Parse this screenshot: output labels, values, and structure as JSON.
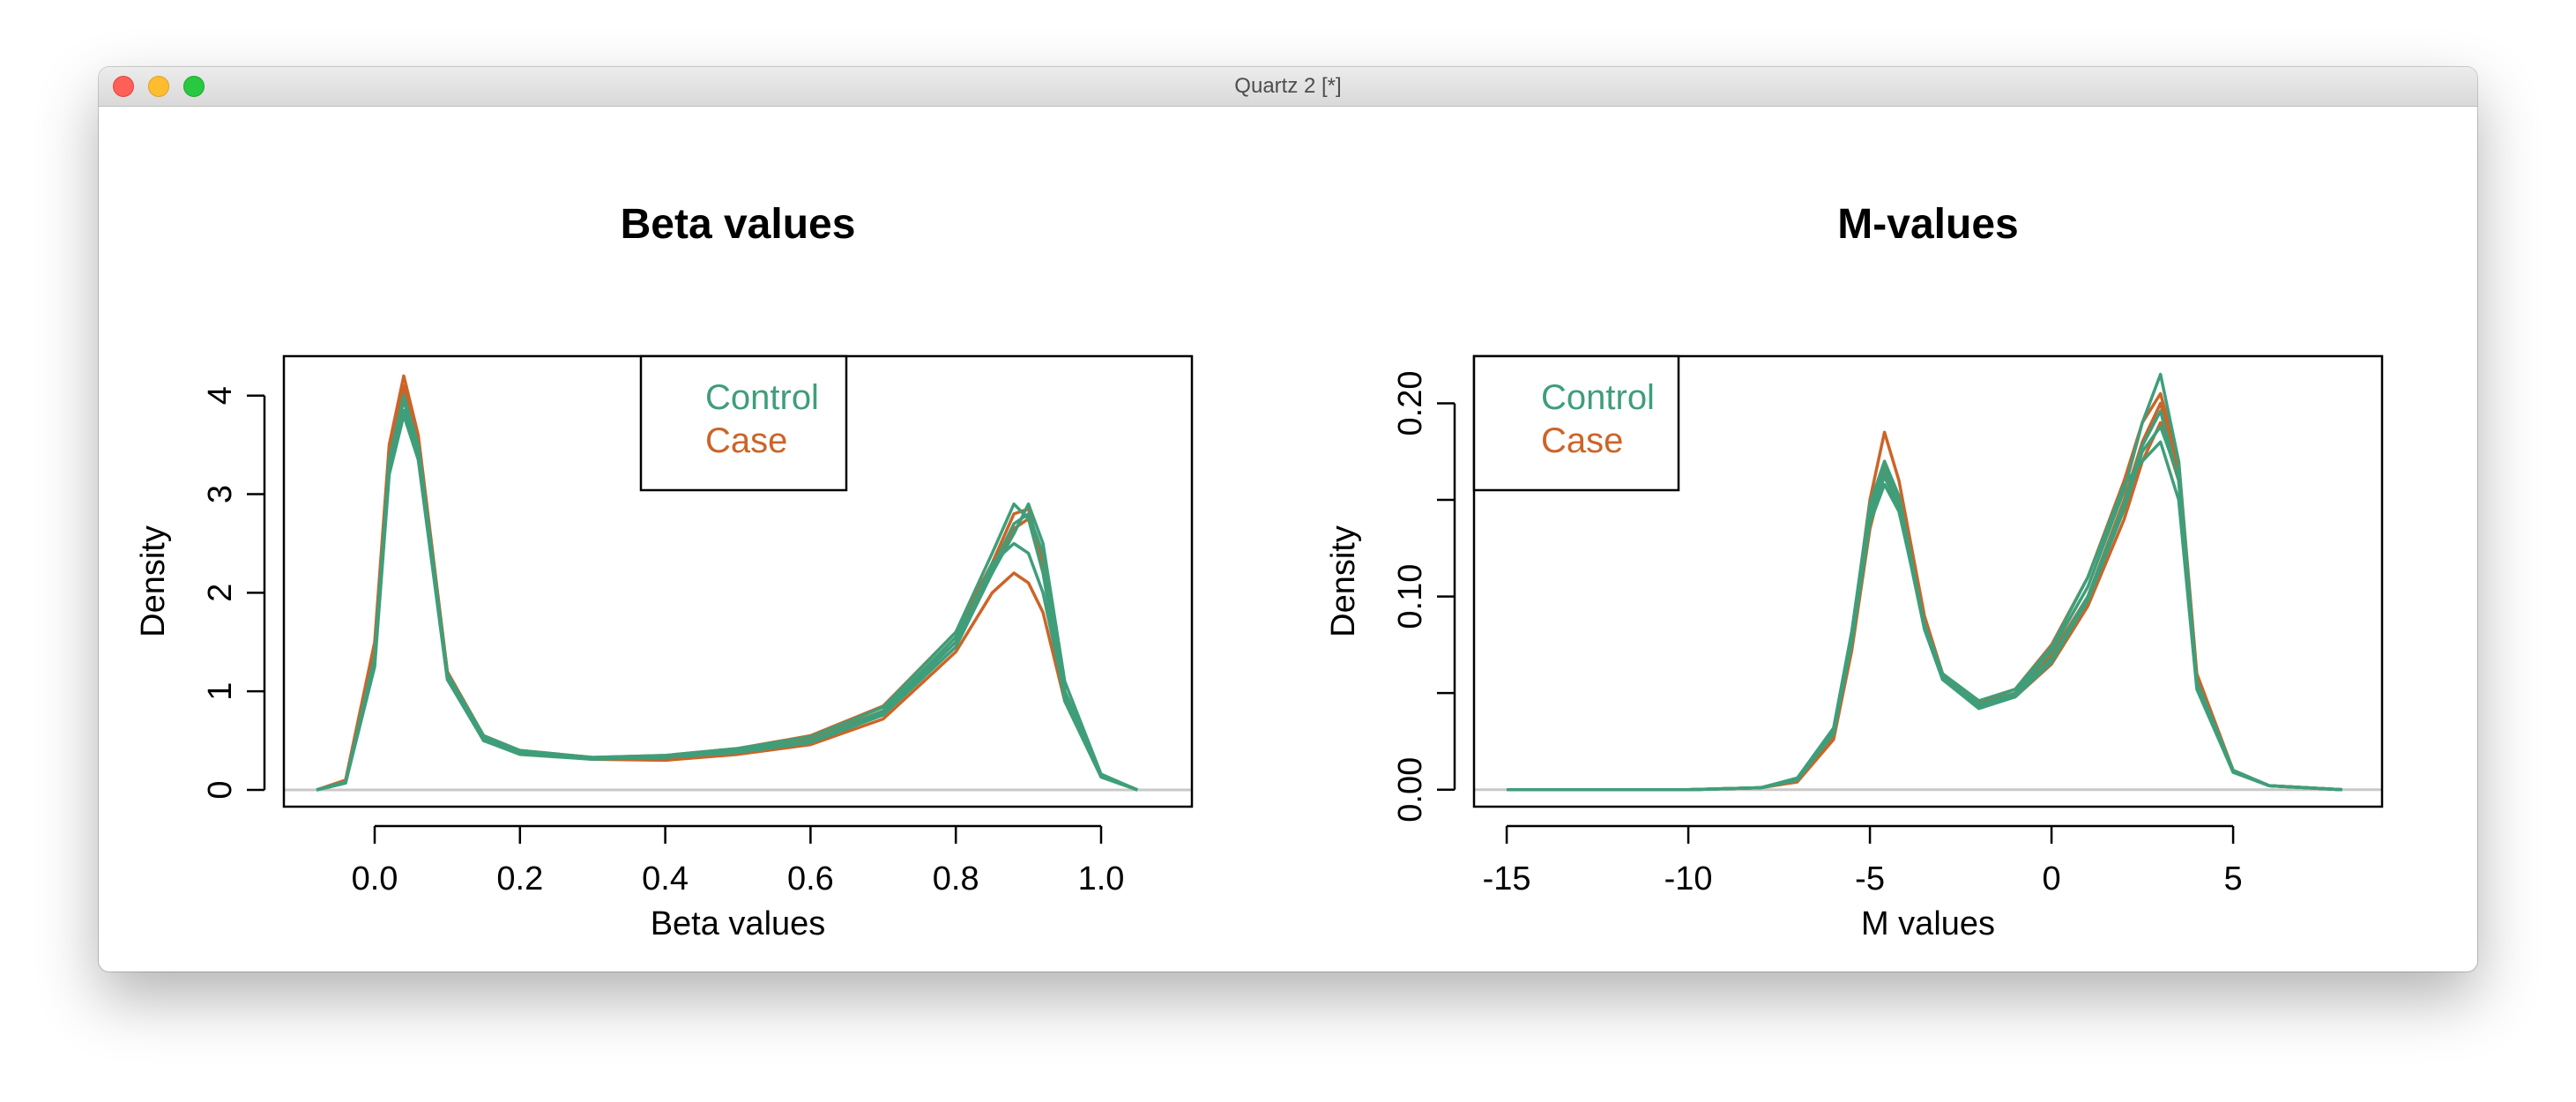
{
  "window": {
    "title": "Quartz 2 [*]"
  },
  "colors": {
    "control": "#3f9e7a",
    "case": "#cc6428",
    "baseline": "#c8c8c8",
    "axis": "#000000"
  },
  "chart_data": [
    {
      "type": "line",
      "title": "Beta values",
      "xlabel": "Beta values",
      "ylabel": "Density",
      "xlim": [
        -0.125,
        1.125
      ],
      "ylim": [
        -0.17,
        4.4
      ],
      "xticks": [
        0.0,
        0.2,
        0.4,
        0.6,
        0.8,
        1.0
      ],
      "xtick_labels": [
        "0.0",
        "0.2",
        "0.4",
        "0.6",
        "0.8",
        "1.0"
      ],
      "yticks": [
        0,
        1,
        2,
        3,
        4
      ],
      "ytick_labels": [
        "0",
        "1",
        "2",
        "3",
        "4"
      ],
      "legend": {
        "placement": "top-center",
        "entries": [
          "Control",
          "Case"
        ]
      },
      "grid": false,
      "series": [
        {
          "group": "Case",
          "x": [
            -0.08,
            -0.04,
            0.0,
            0.02,
            0.04,
            0.06,
            0.1,
            0.15,
            0.2,
            0.3,
            0.4,
            0.5,
            0.6,
            0.7,
            0.8,
            0.85,
            0.88,
            0.9,
            0.92,
            0.95,
            1.0,
            1.05
          ],
          "y": [
            0,
            0.1,
            1.5,
            3.5,
            4.2,
            3.6,
            1.2,
            0.55,
            0.4,
            0.33,
            0.35,
            0.42,
            0.55,
            0.85,
            1.6,
            2.3,
            2.8,
            2.85,
            2.3,
            1.0,
            0.15,
            0
          ]
        },
        {
          "group": "Case",
          "x": [
            -0.08,
            -0.04,
            0.0,
            0.02,
            0.04,
            0.06,
            0.1,
            0.15,
            0.2,
            0.3,
            0.4,
            0.5,
            0.6,
            0.7,
            0.8,
            0.85,
            0.88,
            0.9,
            0.92,
            0.95,
            1.0,
            1.05
          ],
          "y": [
            0,
            0.08,
            1.4,
            3.4,
            4.05,
            3.5,
            1.15,
            0.52,
            0.38,
            0.32,
            0.33,
            0.4,
            0.52,
            0.8,
            1.5,
            2.2,
            2.65,
            2.75,
            2.25,
            0.95,
            0.14,
            0
          ]
        },
        {
          "group": "Case",
          "x": [
            -0.08,
            -0.04,
            0.0,
            0.02,
            0.04,
            0.06,
            0.1,
            0.15,
            0.2,
            0.3,
            0.4,
            0.5,
            0.6,
            0.7,
            0.8,
            0.85,
            0.88,
            0.9,
            0.92,
            0.95,
            1.0,
            1.05
          ],
          "y": [
            0,
            0.09,
            1.45,
            3.45,
            4.1,
            3.55,
            1.2,
            0.5,
            0.37,
            0.31,
            0.3,
            0.36,
            0.46,
            0.72,
            1.4,
            2.0,
            2.2,
            2.1,
            1.8,
            0.9,
            0.15,
            0
          ]
        },
        {
          "group": "Control",
          "x": [
            -0.08,
            -0.04,
            0.0,
            0.02,
            0.04,
            0.06,
            0.1,
            0.15,
            0.2,
            0.3,
            0.4,
            0.5,
            0.6,
            0.7,
            0.8,
            0.85,
            0.88,
            0.9,
            0.92,
            0.95,
            1.0,
            1.05
          ],
          "y": [
            0,
            0.08,
            1.3,
            3.3,
            3.95,
            3.45,
            1.15,
            0.52,
            0.38,
            0.32,
            0.34,
            0.4,
            0.5,
            0.8,
            1.55,
            2.25,
            2.7,
            2.8,
            2.4,
            1.0,
            0.15,
            0
          ]
        },
        {
          "group": "Control",
          "x": [
            -0.08,
            -0.04,
            0.0,
            0.02,
            0.04,
            0.06,
            0.1,
            0.15,
            0.2,
            0.3,
            0.4,
            0.5,
            0.6,
            0.7,
            0.8,
            0.85,
            0.88,
            0.9,
            0.92,
            0.95,
            1.0,
            1.05
          ],
          "y": [
            0,
            0.07,
            1.25,
            3.2,
            3.8,
            3.35,
            1.12,
            0.5,
            0.36,
            0.31,
            0.33,
            0.38,
            0.48,
            0.76,
            1.45,
            2.2,
            2.6,
            2.9,
            2.5,
            1.1,
            0.16,
            0
          ]
        },
        {
          "group": "Control",
          "x": [
            -0.08,
            -0.04,
            0.0,
            0.02,
            0.04,
            0.06,
            0.1,
            0.15,
            0.2,
            0.3,
            0.4,
            0.5,
            0.6,
            0.7,
            0.8,
            0.85,
            0.88,
            0.9,
            0.92,
            0.95,
            1.0,
            1.05
          ],
          "y": [
            0,
            0.08,
            1.35,
            3.35,
            4.0,
            3.5,
            1.18,
            0.55,
            0.4,
            0.33,
            0.35,
            0.42,
            0.54,
            0.84,
            1.6,
            2.4,
            2.9,
            2.75,
            2.2,
            0.9,
            0.13,
            0
          ]
        },
        {
          "group": "Control",
          "x": [
            -0.08,
            -0.04,
            0.0,
            0.02,
            0.04,
            0.06,
            0.1,
            0.15,
            0.2,
            0.3,
            0.4,
            0.5,
            0.6,
            0.7,
            0.8,
            0.85,
            0.88,
            0.9,
            0.92,
            0.95,
            1.0,
            1.05
          ],
          "y": [
            0,
            0.07,
            1.3,
            3.25,
            3.85,
            3.4,
            1.14,
            0.5,
            0.37,
            0.32,
            0.33,
            0.39,
            0.49,
            0.78,
            1.5,
            2.3,
            2.5,
            2.4,
            2.0,
            0.95,
            0.15,
            0
          ]
        }
      ]
    },
    {
      "type": "line",
      "title": "M-values",
      "xlabel": "M values",
      "ylabel": "Density",
      "xlim": [
        -15.9,
        9.1
      ],
      "ylim": [
        -0.0088,
        0.2244
      ],
      "xticks": [
        -15,
        -10,
        -5,
        0,
        5
      ],
      "xtick_labels": [
        "-15",
        "-10",
        "-5",
        "0",
        "5"
      ],
      "yticks": [
        0.0,
        0.05,
        0.1,
        0.15,
        0.2
      ],
      "ytick_labels": [
        "0.00",
        "",
        "0.10",
        "",
        "0.20"
      ],
      "legend": {
        "placement": "top-left",
        "entries": [
          "Control",
          "Case"
        ]
      },
      "grid": false,
      "series": [
        {
          "group": "Case",
          "x": [
            -15,
            -10,
            -8,
            -7,
            -6,
            -5.5,
            -5,
            -4.6,
            -4.2,
            -3.5,
            -3,
            -2,
            -1,
            0,
            1,
            2,
            2.5,
            3,
            3.5,
            4,
            5,
            6,
            8
          ],
          "y": [
            0,
            0,
            0.001,
            0.005,
            0.03,
            0.08,
            0.15,
            0.185,
            0.16,
            0.09,
            0.06,
            0.045,
            0.052,
            0.075,
            0.11,
            0.16,
            0.19,
            0.205,
            0.17,
            0.06,
            0.01,
            0.002,
            0
          ]
        },
        {
          "group": "Case",
          "x": [
            -15,
            -10,
            -8,
            -7,
            -6,
            -5.5,
            -5,
            -4.6,
            -4.2,
            -3.5,
            -3,
            -2,
            -1,
            0,
            1,
            2,
            2.5,
            3,
            3.5,
            4,
            5,
            6,
            8
          ],
          "y": [
            0,
            0,
            0.001,
            0.005,
            0.028,
            0.075,
            0.14,
            0.168,
            0.15,
            0.085,
            0.058,
            0.044,
            0.05,
            0.07,
            0.1,
            0.15,
            0.18,
            0.2,
            0.165,
            0.055,
            0.009,
            0.002,
            0
          ]
        },
        {
          "group": "Case",
          "x": [
            -15,
            -10,
            -8,
            -7,
            -6,
            -5.5,
            -5,
            -4.6,
            -4.2,
            -3.5,
            -3,
            -2,
            -1,
            0,
            1,
            2,
            2.5,
            3,
            3.5,
            4,
            5,
            6,
            8
          ],
          "y": [
            0,
            0,
            0.001,
            0.004,
            0.026,
            0.072,
            0.135,
            0.165,
            0.148,
            0.088,
            0.06,
            0.043,
            0.048,
            0.065,
            0.095,
            0.14,
            0.17,
            0.19,
            0.16,
            0.058,
            0.01,
            0.002,
            0
          ]
        },
        {
          "group": "Control",
          "x": [
            -15,
            -10,
            -8,
            -7,
            -6,
            -5.5,
            -5,
            -4.6,
            -4.2,
            -3.5,
            -3,
            -2,
            -1,
            0,
            1,
            2,
            2.5,
            3,
            3.5,
            4,
            5,
            6,
            8
          ],
          "y": [
            0,
            0,
            0.001,
            0.006,
            0.032,
            0.082,
            0.148,
            0.17,
            0.152,
            0.085,
            0.058,
            0.044,
            0.05,
            0.072,
            0.105,
            0.155,
            0.19,
            0.215,
            0.17,
            0.055,
            0.01,
            0.002,
            0
          ]
        },
        {
          "group": "Control",
          "x": [
            -15,
            -10,
            -8,
            -7,
            -6,
            -5.5,
            -5,
            -4.6,
            -4.2,
            -3.5,
            -3,
            -2,
            -1,
            0,
            1,
            2,
            2.5,
            3,
            3.5,
            4,
            5,
            6,
            8
          ],
          "y": [
            0,
            0,
            0.001,
            0.005,
            0.03,
            0.078,
            0.142,
            0.162,
            0.146,
            0.083,
            0.057,
            0.043,
            0.049,
            0.068,
            0.1,
            0.148,
            0.178,
            0.196,
            0.16,
            0.054,
            0.009,
            0.002,
            0
          ]
        },
        {
          "group": "Control",
          "x": [
            -15,
            -10,
            -8,
            -7,
            -6,
            -5.5,
            -5,
            -4.6,
            -4.2,
            -3.5,
            -3,
            -2,
            -1,
            0,
            1,
            2,
            2.5,
            3,
            3.5,
            4,
            5,
            6,
            8
          ],
          "y": [
            0,
            0,
            0.001,
            0.005,
            0.029,
            0.076,
            0.138,
            0.158,
            0.144,
            0.086,
            0.06,
            0.046,
            0.052,
            0.074,
            0.11,
            0.158,
            0.17,
            0.18,
            0.15,
            0.052,
            0.009,
            0.002,
            0
          ]
        },
        {
          "group": "Control",
          "x": [
            -15,
            -10,
            -8,
            -7,
            -6,
            -5.5,
            -5,
            -4.6,
            -4.2,
            -3.5,
            -3,
            -2,
            -1,
            0,
            1,
            2,
            2.5,
            3,
            3.5,
            4,
            5,
            6,
            8
          ],
          "y": [
            0,
            0,
            0.001,
            0.006,
            0.031,
            0.08,
            0.145,
            0.166,
            0.15,
            0.084,
            0.057,
            0.042,
            0.048,
            0.066,
            0.098,
            0.145,
            0.175,
            0.188,
            0.162,
            0.056,
            0.01,
            0.002,
            0
          ]
        }
      ]
    }
  ]
}
